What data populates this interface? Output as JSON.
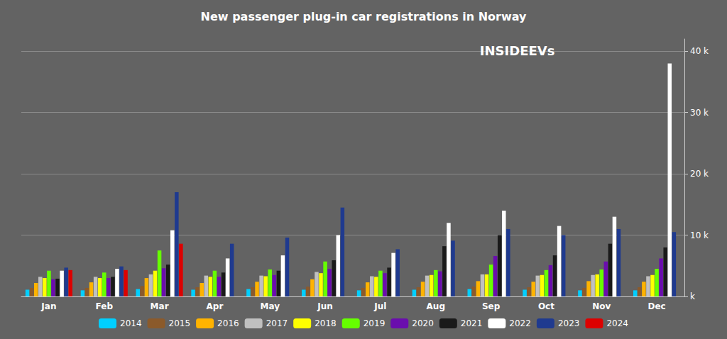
{
  "chart_data": {
    "type": "bar",
    "title": "New passenger plug-in car registrations in Norway",
    "annotations": [
      "INSIDEEVs"
    ],
    "categories": [
      "Jan",
      "Feb",
      "Mar",
      "Apr",
      "May",
      "Jun",
      "Jul",
      "Aug",
      "Sep",
      "Oct",
      "Nov",
      "Dec"
    ],
    "series": [
      {
        "name": "2014",
        "color": "#00CFFF",
        "values": [
          1100,
          1000,
          1200,
          1100,
          1200,
          1100,
          1000,
          1100,
          1200,
          1100,
          1000,
          1000
        ]
      },
      {
        "name": "2015",
        "color": "#8B5A2B",
        "values": [
          1400,
          1400,
          1700,
          1500,
          1500,
          1600,
          1400,
          1500,
          1600,
          1500,
          1400,
          1500
        ]
      },
      {
        "name": "2016",
        "color": "#FFB300",
        "values": [
          2200,
          2300,
          3000,
          2200,
          2400,
          2800,
          2300,
          2400,
          2500,
          2400,
          2500,
          2400
        ]
      },
      {
        "name": "2017",
        "color": "#C0C0C0",
        "values": [
          3200,
          3200,
          3600,
          3400,
          3400,
          4000,
          3300,
          3400,
          3600,
          3400,
          3500,
          3300
        ]
      },
      {
        "name": "2018",
        "color": "#FFFF00",
        "values": [
          3000,
          3000,
          4200,
          3200,
          3300,
          3800,
          3200,
          3500,
          3600,
          3500,
          3600,
          3500
        ]
      },
      {
        "name": "2019",
        "color": "#66FF00",
        "values": [
          4200,
          3900,
          7500,
          4200,
          4400,
          5700,
          4200,
          4300,
          5200,
          4300,
          4400,
          4500
        ]
      },
      {
        "name": "2020",
        "color": "#6A0DAD",
        "values": [
          2800,
          3000,
          4600,
          3200,
          3500,
          4500,
          3800,
          4100,
          6600,
          5100,
          5700,
          6200
        ]
      },
      {
        "name": "2021",
        "color": "#1A1A1A",
        "values": [
          2900,
          3200,
          5200,
          3900,
          4200,
          5900,
          4700,
          8200,
          10000,
          6700,
          8600,
          8000
        ]
      },
      {
        "name": "2022",
        "color": "#FFFFFF",
        "values": [
          4200,
          4500,
          10800,
          6200,
          6700,
          10000,
          7100,
          12000,
          14000,
          11500,
          13000,
          38000
        ]
      },
      {
        "name": "2023",
        "color": "#1F3A8F",
        "values": [
          4700,
          4900,
          17000,
          8600,
          9600,
          14500,
          7700,
          9100,
          11000,
          10000,
          11000,
          10500
        ]
      },
      {
        "name": "2024",
        "color": "#DD0000",
        "values": [
          4300,
          4300,
          8600,
          0,
          0,
          0,
          0,
          0,
          0,
          0,
          0,
          0
        ]
      }
    ],
    "ylim": [
      0,
      42000
    ],
    "yticks": [
      {
        "value": 0,
        "label": "k"
      },
      {
        "value": 10000,
        "label": "10 k"
      },
      {
        "value": 20000,
        "label": "20 k"
      },
      {
        "value": 30000,
        "label": "30 k"
      },
      {
        "value": 40000,
        "label": "40 k"
      }
    ],
    "grid": true,
    "legend": "bottom"
  }
}
